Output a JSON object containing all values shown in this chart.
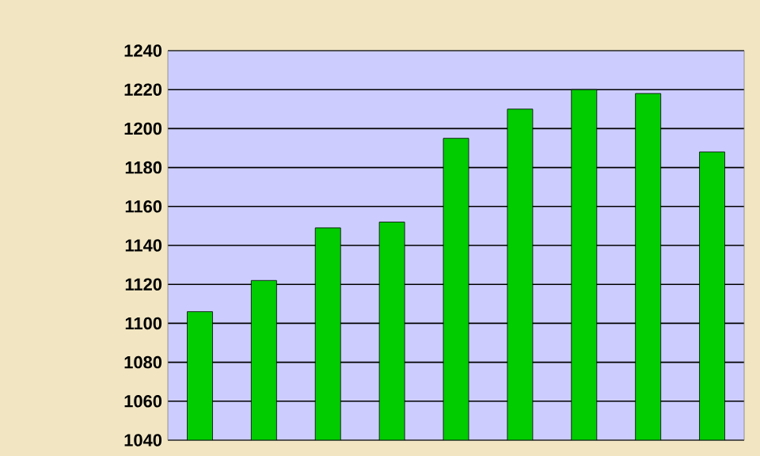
{
  "chart_data": {
    "type": "bar",
    "categories": [
      null,
      null,
      null,
      null,
      null,
      null,
      null,
      null,
      null
    ],
    "values": [
      1106,
      1122,
      1149,
      1152,
      1195,
      1210,
      1220,
      1218,
      1188
    ],
    "color": "#00cc00",
    "ylim": [
      1040,
      1240
    ],
    "yticks": [
      1040,
      1060,
      1080,
      1100,
      1120,
      1140,
      1160,
      1180,
      1200,
      1220,
      1240
    ],
    "grid": "y",
    "tick_labels": "y"
  }
}
